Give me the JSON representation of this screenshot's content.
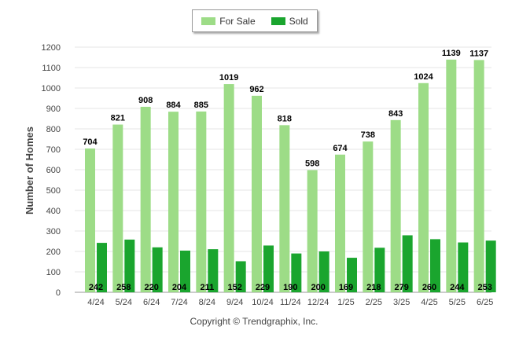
{
  "chart_data": {
    "type": "bar",
    "categories": [
      "4/24",
      "5/24",
      "6/24",
      "7/24",
      "8/24",
      "9/24",
      "10/24",
      "11/24",
      "12/24",
      "1/25",
      "2/25",
      "3/25",
      "4/25",
      "5/25",
      "6/25"
    ],
    "series": [
      {
        "name": "For Sale",
        "color": "#9ddc87",
        "values": [
          704,
          821,
          908,
          884,
          885,
          1019,
          962,
          818,
          598,
          674,
          738,
          843,
          1024,
          1139,
          1137
        ]
      },
      {
        "name": "Sold",
        "color": "#1aa52e",
        "values": [
          242,
          258,
          220,
          204,
          211,
          152,
          229,
          190,
          200,
          169,
          218,
          279,
          260,
          244,
          253
        ]
      }
    ],
    "ylabel": "Number of Homes",
    "ylim": [
      0,
      1200
    ],
    "yticks": [
      0,
      100,
      200,
      300,
      400,
      500,
      600,
      700,
      800,
      900,
      1000,
      1100,
      1200
    ],
    "grid": true,
    "legend": "top-center"
  },
  "footer": "Copyright © Trendgraphix, Inc."
}
